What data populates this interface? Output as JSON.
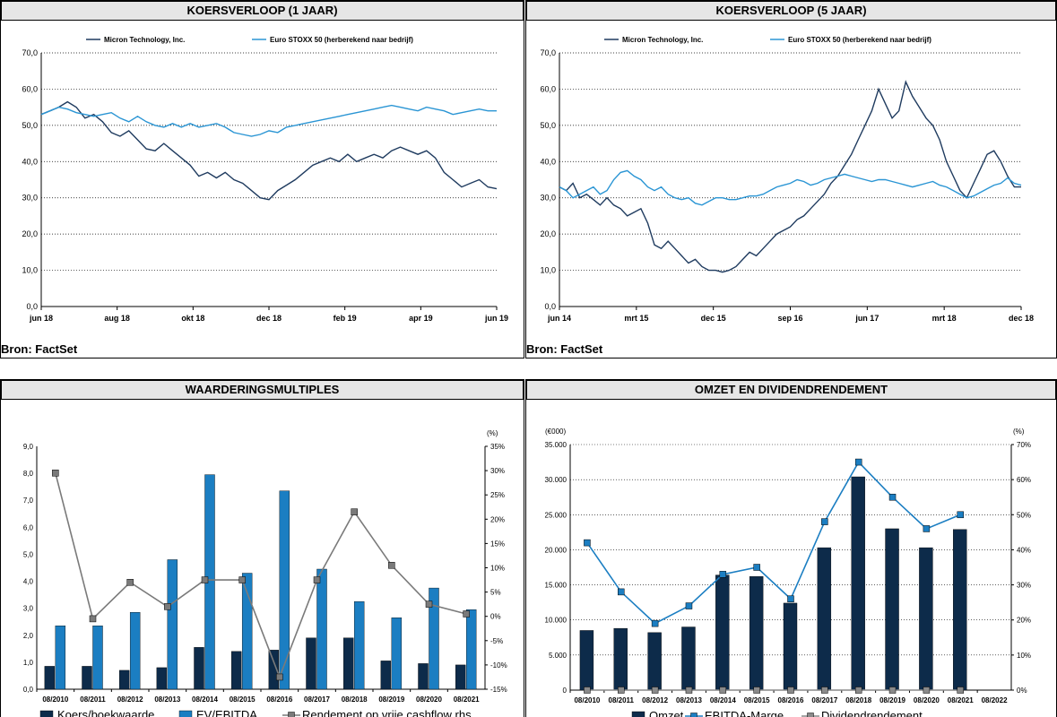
{
  "panels": {
    "p1": {
      "title": "KOERSVERLOOP (1 JAAR)",
      "source": "Bron: FactSet"
    },
    "p2": {
      "title": "KOERSVERLOOP (5 JAAR)",
      "source": "Bron: FactSet"
    },
    "p3": {
      "title": "WAARDERINGSMULTIPLES"
    },
    "p4": {
      "title": "OMZET EN DIVIDENDRENDEMENT"
    }
  },
  "colors": {
    "dark": "#1f3b5f",
    "light": "#2a95d4",
    "grey": "#7a7a7a",
    "navy": "#0d2b4a",
    "blue": "#1b7ec2"
  },
  "chart_data": [
    {
      "type": "line",
      "title": "KOERSVERLOOP (1 JAAR)",
      "x_ticks": [
        "jun 18",
        "aug 18",
        "okt 18",
        "dec 18",
        "feb 19",
        "apr 19",
        "jun 19"
      ],
      "y_ticks": [
        "0,0",
        "10,0",
        "20,0",
        "30,0",
        "40,0",
        "50,0",
        "60,0",
        "70,0"
      ],
      "ylim": [
        0,
        70
      ],
      "legend": "top",
      "grid": true,
      "series": [
        {
          "name": "Micron Technology, Inc.",
          "color": "#1f3b5f",
          "values": [
            53,
            54,
            55,
            56.5,
            55,
            52,
            53,
            51,
            48,
            47,
            48.5,
            46,
            43.5,
            43,
            45,
            43,
            41,
            39,
            36,
            37,
            35.5,
            37,
            35,
            34,
            32,
            30,
            29.5,
            32,
            33.5,
            35,
            37,
            39,
            40,
            41,
            40,
            42,
            40,
            41,
            42,
            41,
            43,
            44,
            43,
            42,
            43,
            41,
            37,
            35,
            33,
            34,
            35,
            33,
            32.5
          ]
        },
        {
          "name": "Euro STOXX 50 (herberekend naar bedrijf)",
          "color": "#2a95d4",
          "values": [
            53,
            54,
            55,
            54.5,
            53.5,
            53,
            52.5,
            53,
            53.5,
            52,
            51,
            52.5,
            51,
            50,
            49.5,
            50.5,
            49.5,
            50.5,
            49.5,
            50,
            50.5,
            49.5,
            48,
            47.5,
            47,
            47.5,
            48.5,
            48,
            49.5,
            50,
            50.5,
            51,
            51.5,
            52,
            52.5,
            53,
            53.5,
            54,
            54.5,
            55,
            55.5,
            55,
            54.5,
            54,
            55,
            54.5,
            54,
            53,
            53.5,
            54,
            54.5,
            54,
            54
          ]
        }
      ]
    },
    {
      "type": "line",
      "title": "KOERSVERLOOP (5 JAAR)",
      "x_ticks": [
        "jun 14",
        "mrt 15",
        "dec 15",
        "sep 16",
        "jun 17",
        "mrt 18",
        "dec 18"
      ],
      "y_ticks": [
        "0,0",
        "10,0",
        "20,0",
        "30,0",
        "40,0",
        "50,0",
        "60,0",
        "70,0"
      ],
      "ylim": [
        0,
        70
      ],
      "legend": "top",
      "grid": true,
      "series": [
        {
          "name": "Micron Technology, Inc.",
          "color": "#1f3b5f",
          "values": [
            33,
            32,
            34,
            30,
            31,
            29.5,
            28,
            30,
            28,
            27,
            25,
            26,
            27,
            23,
            17,
            16,
            18,
            16,
            14,
            12,
            13,
            11,
            10,
            10,
            9.5,
            10,
            11,
            13,
            15,
            14,
            16,
            18,
            20,
            21,
            22,
            24,
            25,
            27,
            29,
            31,
            34,
            36,
            39,
            42,
            46,
            50,
            54,
            60,
            56,
            52,
            54,
            62,
            58,
            55,
            52,
            50,
            46,
            40,
            36,
            32,
            30,
            34,
            38,
            42,
            43,
            40,
            36,
            33,
            33
          ]
        },
        {
          "name": "Euro STOXX 50 (herberekend naar bedrijf)",
          "color": "#2a95d4",
          "values": [
            33,
            32,
            30,
            31,
            32,
            33,
            31,
            32,
            35,
            37,
            37.5,
            36,
            35,
            33,
            32,
            33,
            31,
            30,
            29.5,
            30,
            28.5,
            28,
            29,
            30,
            30,
            29.5,
            29.5,
            30,
            30.5,
            30.5,
            31,
            32,
            33,
            33.5,
            34,
            35,
            34.5,
            33.5,
            34,
            35,
            35.5,
            36,
            36.5,
            36,
            35.5,
            35,
            34.5,
            35,
            35,
            34.5,
            34,
            33.5,
            33,
            33.5,
            34,
            34.5,
            33.5,
            33,
            32,
            31,
            30,
            30.5,
            31.5,
            32.5,
            33.5,
            34,
            35.5,
            34,
            33.5
          ]
        }
      ]
    },
    {
      "type": "bar",
      "title": "WAARDERINGSMULTIPLES",
      "categories": [
        "08/2010",
        "08/2011",
        "08/2012",
        "08/2013",
        "08/2014",
        "08/2015",
        "08/2016",
        "08/2017",
        "08/2018",
        "08/2019",
        "08/2020",
        "08/2021"
      ],
      "y_ticks": [
        "0,0",
        "1,0",
        "2,0",
        "3,0",
        "4,0",
        "5,0",
        "6,0",
        "7,0",
        "8,0",
        "9,0"
      ],
      "ylim": [
        0,
        9
      ],
      "y2_unit": "(%)",
      "y2_ticks": [
        "-15%",
        "-10%",
        "-5%",
        "0%",
        "5%",
        "10%",
        "15%",
        "20%",
        "25%",
        "30%",
        "35%"
      ],
      "y2lim": [
        -15,
        35
      ],
      "legend": "bottom",
      "series": [
        {
          "name": "Koers/boekwaarde",
          "kind": "bar",
          "color": "#0d2b4a",
          "values": [
            0.85,
            0.85,
            0.7,
            0.8,
            1.55,
            1.4,
            1.45,
            1.9,
            1.9,
            1.05,
            0.95,
            0.9
          ]
        },
        {
          "name": "EV/EBITDA",
          "kind": "bar",
          "color": "#1b7ec2",
          "values": [
            2.35,
            2.35,
            2.85,
            4.8,
            7.95,
            4.3,
            7.35,
            4.45,
            3.25,
            2.65,
            3.75,
            2.95
          ]
        },
        {
          "name": "Rendement op vrije cashflow rhs",
          "kind": "line",
          "axis": "right",
          "color": "#7a7a7a",
          "values": [
            29.5,
            -0.5,
            7,
            2,
            7.5,
            7.5,
            -12.5,
            7.5,
            21.5,
            10.5,
            2.5,
            0.5
          ]
        }
      ]
    },
    {
      "type": "bar",
      "title": "OMZET EN DIVIDENDRENDEMENT",
      "categories": [
        "08/2010",
        "08/2011",
        "08/2012",
        "08/2013",
        "08/2014",
        "08/2015",
        "08/2016",
        "08/2017",
        "08/2018",
        "08/2019",
        "08/2020",
        "08/2021",
        "08/2022"
      ],
      "y_unit": "(€000)",
      "y_ticks": [
        "0",
        "5.000",
        "10.000",
        "15.000",
        "20.000",
        "25.000",
        "30.000",
        "35.000"
      ],
      "ylim": [
        0,
        35000
      ],
      "y2_unit": "(%)",
      "y2_ticks": [
        "0%",
        "10%",
        "20%",
        "30%",
        "40%",
        "50%",
        "60%",
        "70%"
      ],
      "y2lim": [
        0,
        70
      ],
      "legend": "bottom",
      "series": [
        {
          "name": "Omzet",
          "kind": "bar",
          "color": "#0d2b4a",
          "values": [
            8500,
            8800,
            8200,
            9000,
            16400,
            16200,
            12400,
            20300,
            30400,
            23000,
            20300,
            22900,
            null
          ]
        },
        {
          "name": "EBITDA-Marge",
          "kind": "line",
          "axis": "right",
          "color": "#1b7ec2",
          "values": [
            42,
            28,
            19,
            24,
            33,
            35,
            26,
            48,
            65,
            55,
            46,
            50,
            null
          ]
        },
        {
          "name": "Dividendrendement",
          "kind": "line",
          "axis": "right",
          "color": "#8a8a8a",
          "values": [
            0,
            0,
            0,
            0,
            0,
            0,
            0,
            0,
            0,
            0,
            0,
            0,
            null
          ]
        }
      ]
    }
  ]
}
